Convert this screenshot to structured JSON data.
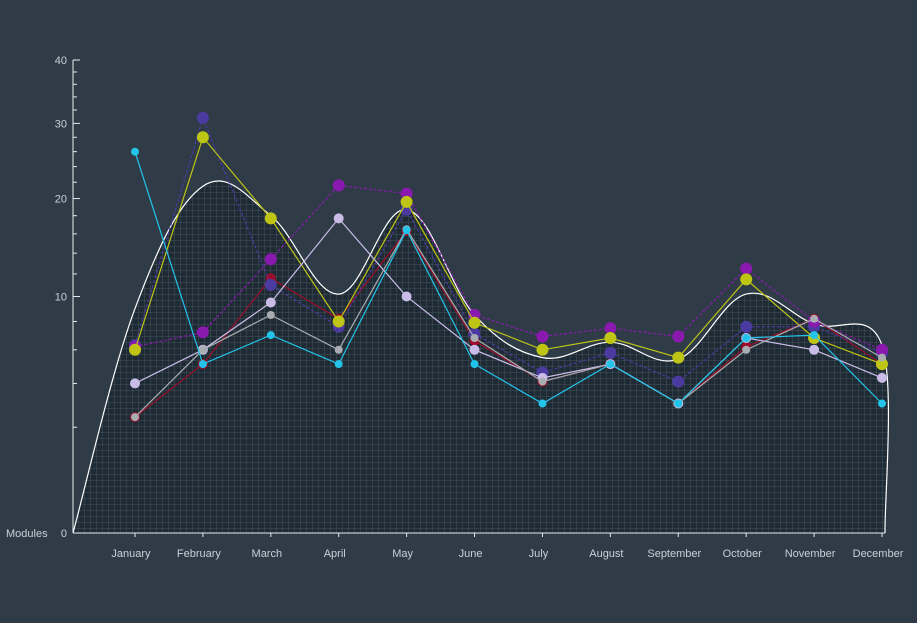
{
  "chart_data": {
    "type": "line",
    "ylabel": "Modules",
    "categories": [
      "January",
      "February",
      "March",
      "April",
      "May",
      "June",
      "July",
      "August",
      "September",
      "October",
      "November",
      "December"
    ],
    "yticks": [
      "0",
      "10",
      "20",
      "30",
      "40"
    ],
    "ylim": [
      0,
      40
    ],
    "y_scale": "sqrt",
    "grid": false,
    "legend": "none",
    "area": {
      "values": [
        9,
        21.5,
        18,
        10.2,
        18.7,
        8.5,
        5.5,
        6.5,
        5.4,
        10.2,
        7.8,
        6.3
      ],
      "fill": "#1e2a33",
      "hatch": "#4f5d68",
      "line": "#ffffff"
    },
    "series": [
      {
        "values": [
          2.4,
          5.1,
          11.6,
          8.2,
          16.3,
          6.6,
          4.1,
          5.1,
          3.0,
          6.2,
          8.2,
          5.1
        ],
        "color": "#9b0d2a",
        "dashed": false,
        "marker": 5
      },
      {
        "values": [
          6.3,
          30.8,
          11.0,
          7.6,
          18.7,
          7.1,
          4.6,
          5.8,
          4.1,
          7.6,
          7.6,
          5.8
        ],
        "color": "#4b3aa0",
        "dashed": true,
        "marker": 6
      },
      {
        "values": [
          6.2,
          7.2,
          13.4,
          21.6,
          20.6,
          8.5,
          6.9,
          7.5,
          6.9,
          12.5,
          8.0,
          6.0
        ],
        "color": "#8a19b0",
        "dashed": true,
        "marker": 6
      },
      {
        "values": [
          6.0,
          28.0,
          17.7,
          8.0,
          19.6,
          7.9,
          6.0,
          6.8,
          5.5,
          11.5,
          6.8,
          5.1
        ],
        "color": "#bec515",
        "dashed": false,
        "marker": 6
      },
      {
        "values": [
          4.0,
          6.0,
          9.5,
          17.7,
          10.0,
          6.0,
          4.3,
          5.1,
          3.0,
          6.8,
          6.0,
          4.3
        ],
        "color": "#c9bde8",
        "dashed": false,
        "marker": 5
      },
      {
        "values": [
          2.4,
          6.0,
          8.5,
          6.0,
          16.5,
          6.8,
          4.1,
          5.1,
          3.0,
          6.0,
          8.2,
          5.5
        ],
        "color": "#a9adb1",
        "dashed": false,
        "marker": 4
      },
      {
        "values": [
          26.0,
          5.1,
          7.0,
          5.1,
          16.4,
          5.1,
          3.0,
          5.1,
          3.0,
          6.8,
          7.0,
          3.0
        ],
        "color": "#22c4ea",
        "dashed": false,
        "marker": 4
      }
    ]
  }
}
